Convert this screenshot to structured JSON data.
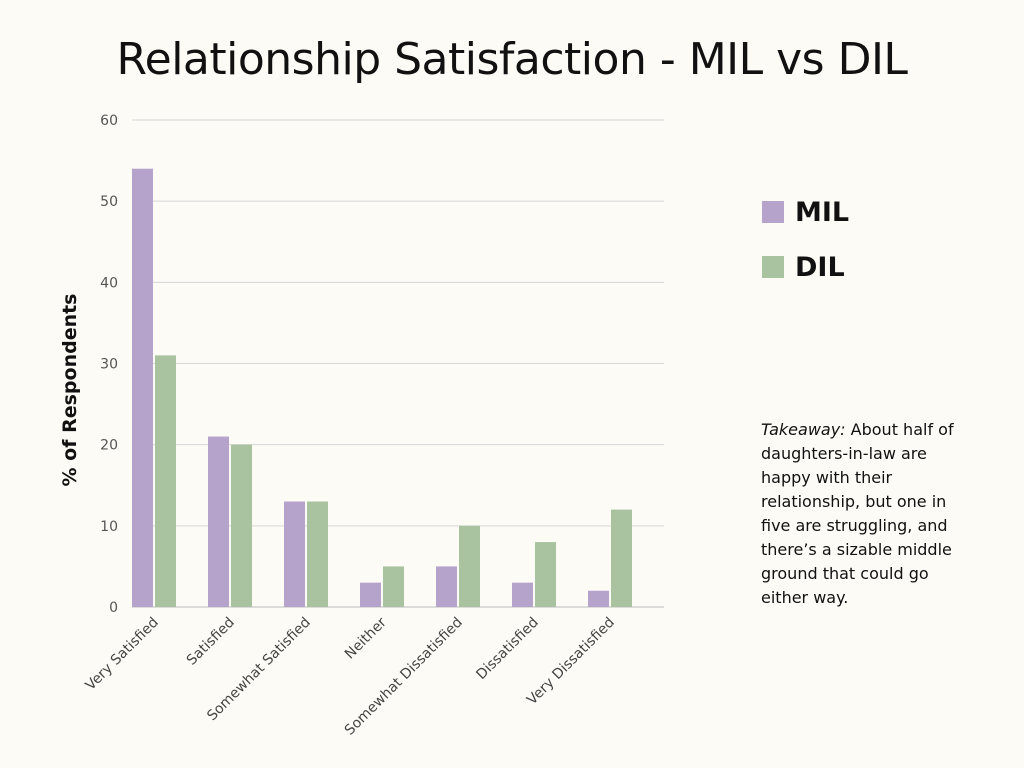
{
  "title": "Relationship Satisfaction - MIL vs DIL",
  "legend": [
    {
      "label": "MIL",
      "color": "#b5a3cc"
    },
    {
      "label": "DIL",
      "color": "#a9c2a0"
    }
  ],
  "takeaway": {
    "lead": "Takeaway:",
    "text": "About half of daughters-in-law are happy with their relationship, but one in five are struggling, and there’s a sizable middle ground that could go either way."
  },
  "chart_data": {
    "type": "bar",
    "title": "Relationship Satisfaction - MIL vs DIL",
    "xlabel": "",
    "ylabel": "% of Respondents",
    "ylim": [
      0,
      60
    ],
    "yticks": [
      0,
      10,
      20,
      30,
      40,
      50,
      60
    ],
    "grid": true,
    "legend_position": "right",
    "categories": [
      "Very Satisfied",
      "Satisfied",
      "Somewhat Satisfied",
      "Neither",
      "Somewhat Dissatisfied",
      "Dissatisfied",
      "Very Dissatisfied"
    ],
    "series": [
      {
        "name": "MIL",
        "color": "#b5a3cc",
        "values": [
          54,
          21,
          13,
          3,
          5,
          3,
          2
        ]
      },
      {
        "name": "DIL",
        "color": "#a9c2a0",
        "values": [
          31,
          20,
          13,
          5,
          10,
          8,
          12
        ]
      }
    ]
  }
}
